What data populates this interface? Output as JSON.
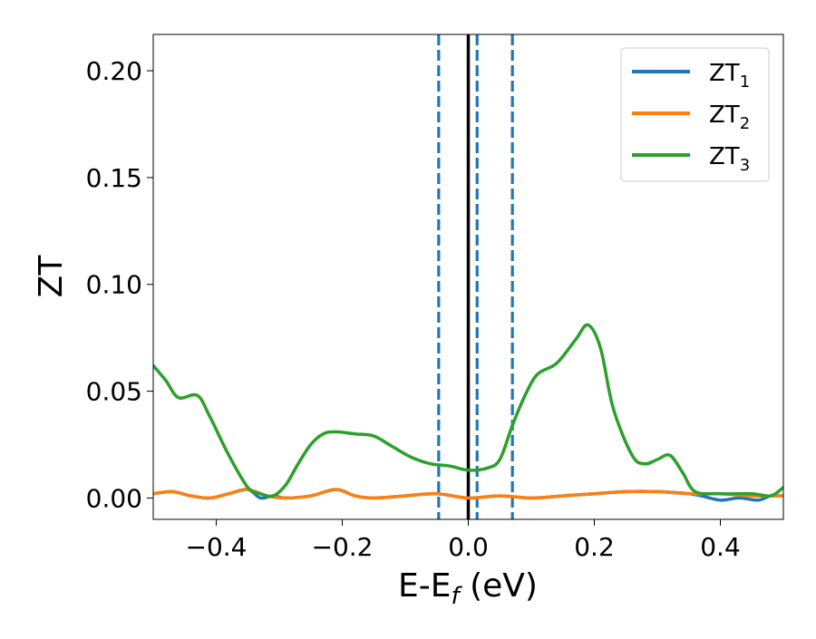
{
  "chart_data": {
    "type": "line",
    "xlabel": "E-E",
    "xlabel_sub": "f",
    "xlabel_unit": " (eV)",
    "ylabel": "ZT",
    "xlim": [
      -0.5,
      0.5
    ],
    "ylim": [
      -0.01,
      0.217
    ],
    "x_ticks": [
      -0.4,
      -0.2,
      0.0,
      0.2,
      0.4
    ],
    "x_tick_labels": [
      "−0.4",
      "−0.2",
      "0.0",
      "0.2",
      "0.4"
    ],
    "y_ticks": [
      0.0,
      0.05,
      0.1,
      0.15,
      0.2
    ],
    "y_tick_labels": [
      "0.00",
      "0.05",
      "0.10",
      "0.15",
      "0.20"
    ],
    "grid": false,
    "legend_position": "top-right",
    "vertical_lines": [
      {
        "x": 0.0,
        "style": "solid",
        "color": "#000000"
      },
      {
        "x": -0.047,
        "style": "dashed",
        "color": "#1f77b4"
      },
      {
        "x": 0.014,
        "style": "dashed",
        "color": "#1f77b4"
      },
      {
        "x": 0.07,
        "style": "dashed",
        "color": "#1f77b4"
      }
    ],
    "series": [
      {
        "name": "ZT",
        "name_sub": "1",
        "color": "#1f77b4",
        "x": [
          -0.5,
          -0.47,
          -0.44,
          -0.41,
          -0.38,
          -0.35,
          -0.33,
          -0.31,
          -0.29,
          -0.25,
          -0.21,
          -0.18,
          -0.15,
          -0.1,
          -0.05,
          0.0,
          0.05,
          0.1,
          0.15,
          0.2,
          0.25,
          0.3,
          0.35,
          0.37,
          0.4,
          0.43,
          0.46,
          0.48,
          0.5
        ],
        "y": [
          0.002,
          0.003,
          0.001,
          0.0,
          0.002,
          0.004,
          0.0,
          0.001,
          0.0,
          0.001,
          0.004,
          0.001,
          0.0,
          0.001,
          0.002,
          0.0,
          0.001,
          0.0,
          0.001,
          0.002,
          0.003,
          0.003,
          0.002,
          0.001,
          -0.001,
          0.0,
          -0.001,
          0.001,
          0.001
        ]
      },
      {
        "name": "ZT",
        "name_sub": "2",
        "color": "#ff7f0e",
        "x": [
          -0.5,
          -0.47,
          -0.44,
          -0.41,
          -0.38,
          -0.35,
          -0.32,
          -0.29,
          -0.25,
          -0.21,
          -0.18,
          -0.15,
          -0.1,
          -0.05,
          0.0,
          0.05,
          0.1,
          0.15,
          0.2,
          0.25,
          0.3,
          0.35,
          0.4,
          0.45,
          0.5
        ],
        "y": [
          0.002,
          0.003,
          0.001,
          0.0,
          0.002,
          0.004,
          0.001,
          0.0,
          0.001,
          0.004,
          0.001,
          0.0,
          0.001,
          0.002,
          0.0,
          0.001,
          0.0,
          0.001,
          0.002,
          0.003,
          0.003,
          0.002,
          0.002,
          0.001,
          0.001
        ]
      },
      {
        "name": "ZT",
        "name_sub": "3",
        "color": "#2ca02c",
        "x": [
          -0.5,
          -0.48,
          -0.46,
          -0.43,
          -0.41,
          -0.38,
          -0.35,
          -0.33,
          -0.31,
          -0.29,
          -0.27,
          -0.25,
          -0.23,
          -0.21,
          -0.18,
          -0.15,
          -0.12,
          -0.09,
          -0.06,
          -0.03,
          0.0,
          0.03,
          0.05,
          0.07,
          0.09,
          0.11,
          0.14,
          0.17,
          0.19,
          0.21,
          0.23,
          0.26,
          0.28,
          0.3,
          0.32,
          0.34,
          0.36,
          0.4,
          0.45,
          0.48,
          0.5
        ],
        "y": [
          0.062,
          0.055,
          0.047,
          0.048,
          0.038,
          0.02,
          0.005,
          0.002,
          0.001,
          0.006,
          0.016,
          0.025,
          0.03,
          0.031,
          0.03,
          0.029,
          0.024,
          0.019,
          0.016,
          0.015,
          0.013,
          0.014,
          0.018,
          0.034,
          0.048,
          0.058,
          0.063,
          0.074,
          0.081,
          0.07,
          0.042,
          0.02,
          0.016,
          0.018,
          0.02,
          0.012,
          0.003,
          0.002,
          0.002,
          0.001,
          0.005
        ]
      }
    ]
  }
}
